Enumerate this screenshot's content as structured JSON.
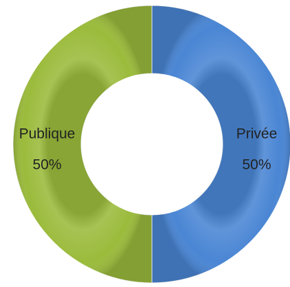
{
  "chart_data": {
    "type": "donut",
    "categories": [
      "Privée",
      "Publique"
    ],
    "values": [
      50,
      50
    ],
    "value_labels": [
      "50%",
      "50%"
    ],
    "colors": [
      "#4a86d4",
      "#9bbb3c"
    ]
  }
}
